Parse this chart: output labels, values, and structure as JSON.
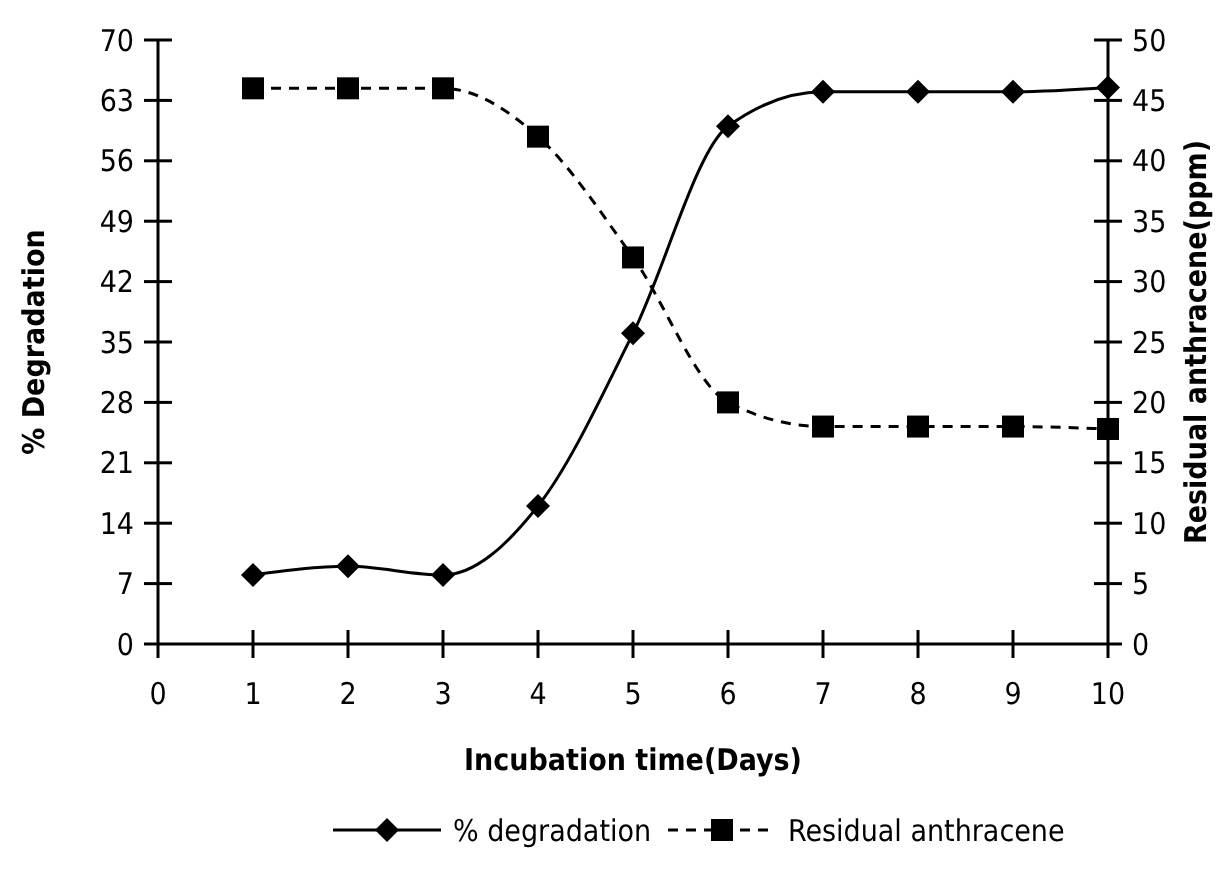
{
  "chart_data": {
    "type": "line",
    "xlabel": "Incubation time(Days)",
    "ylabel": "% Degradation",
    "y2label": "Residual anthracene(ppm)",
    "x": [
      1,
      2,
      3,
      4,
      5,
      6,
      7,
      8,
      9,
      10
    ],
    "xlim": [
      0,
      10
    ],
    "xticks": [
      0,
      1,
      2,
      3,
      4,
      5,
      6,
      7,
      8,
      9,
      10
    ],
    "ylim": [
      0,
      70
    ],
    "yticks": [
      0,
      7,
      14,
      21,
      28,
      35,
      42,
      49,
      56,
      63,
      70
    ],
    "y2lim": [
      0,
      50
    ],
    "y2ticks": [
      0,
      5,
      10,
      15,
      20,
      25,
      30,
      35,
      40,
      45,
      50
    ],
    "legend": "bottom",
    "grid": false,
    "series": [
      {
        "name": "% degradation",
        "color": "#000000",
        "marker": "diamond",
        "line_style": "solid",
        "values": [
          8,
          9,
          8,
          16,
          36,
          60,
          64,
          64,
          64,
          64.5
        ]
      },
      {
        "name": "Residual anthracene",
        "color": "#000000",
        "marker": "square",
        "line_style": "dashed",
        "axis": "y2",
        "values": [
          46,
          46,
          46,
          42,
          32,
          20,
          18,
          18,
          18,
          17.8
        ]
      }
    ]
  }
}
